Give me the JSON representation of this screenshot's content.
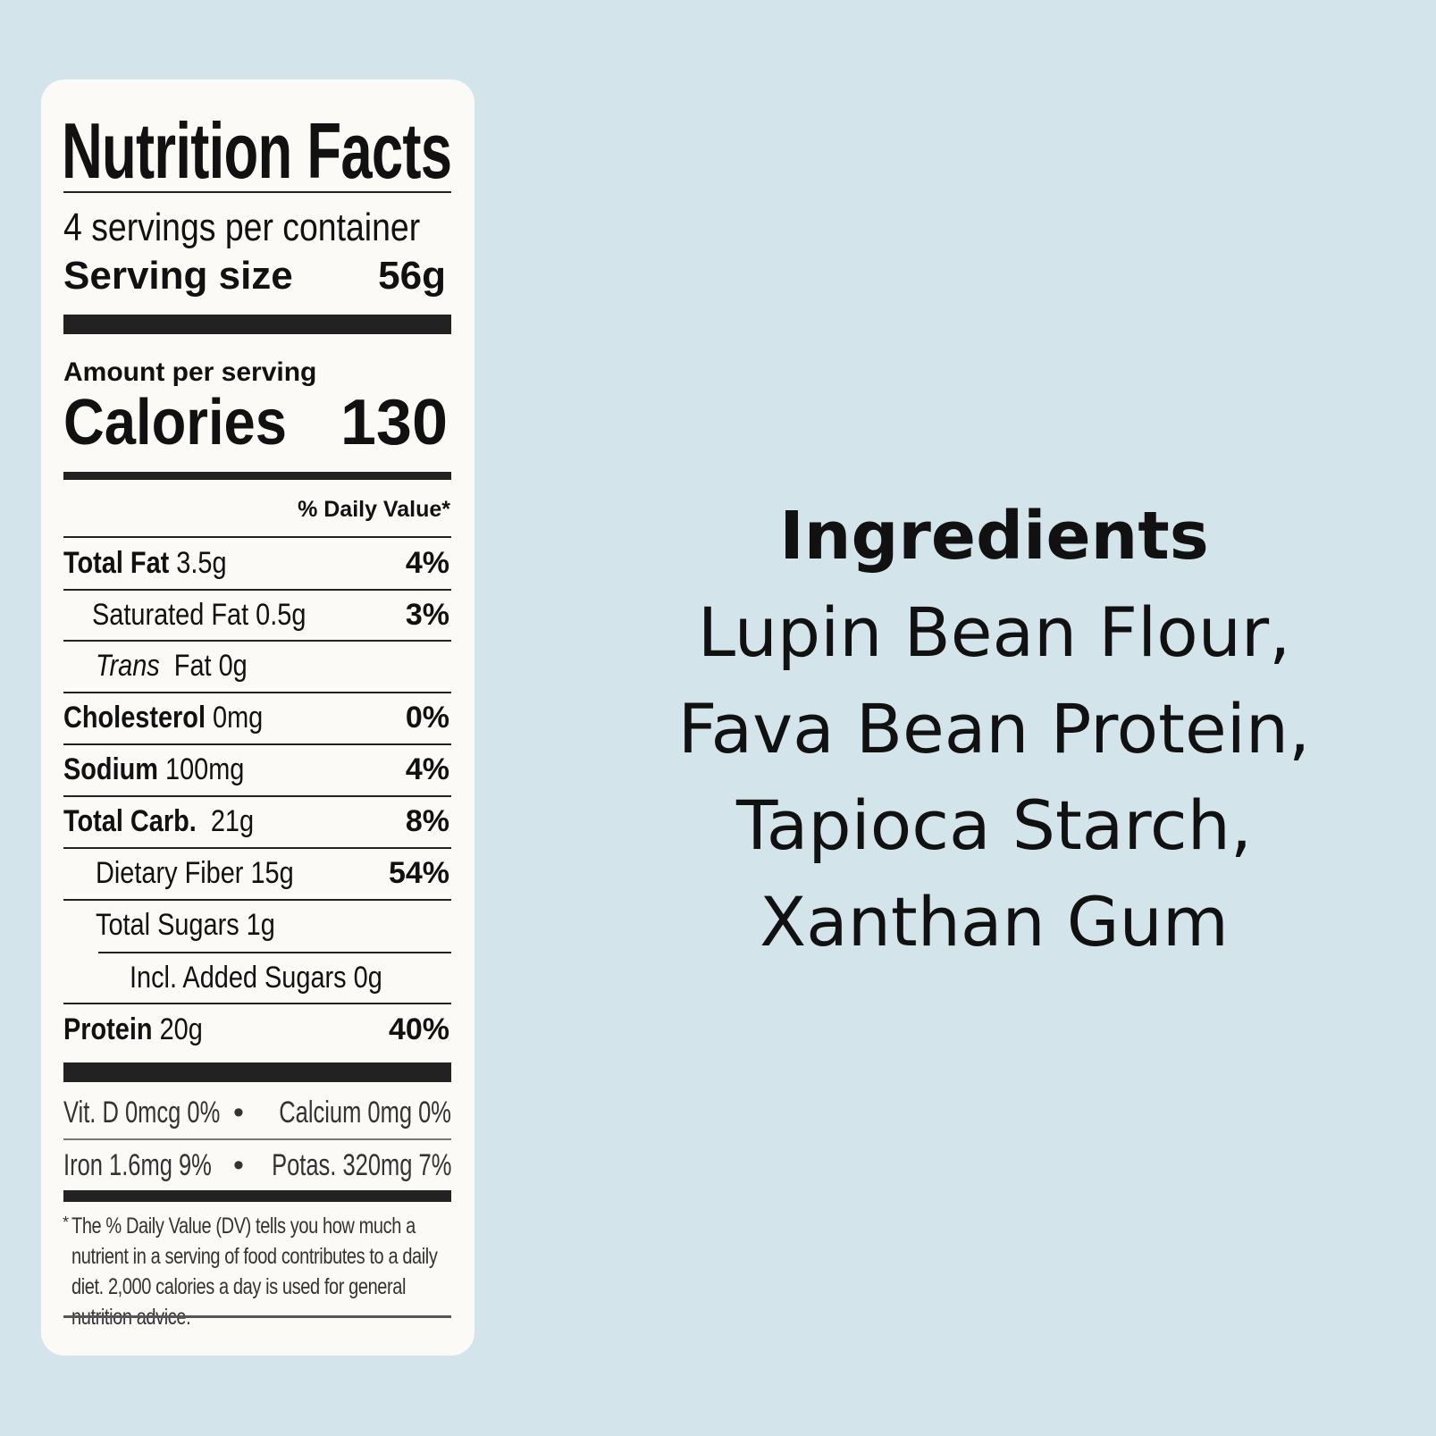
{
  "nutrition": {
    "title": "Nutrition Facts",
    "servings_per_container": "4 servings per container",
    "serving_size_label": "Serving size",
    "serving_size_value": "56g",
    "amount_per_serving": "Amount per serving",
    "calories_label": "Calories",
    "calories_value": "130",
    "daily_value_header": "% Daily Value*",
    "rows": [
      {
        "name": "Total Fat",
        "amount": "3.5g",
        "dv": "4%"
      },
      {
        "name": "Saturated Fat",
        "amount": "0.5g",
        "dv": "3%"
      },
      {
        "name": "Trans",
        "amount": "Fat 0g",
        "dv": ""
      },
      {
        "name": "Cholesterol",
        "amount": "0mg",
        "dv": "0%"
      },
      {
        "name": "Sodium",
        "amount": "100mg",
        "dv": "4%"
      },
      {
        "name": "Total Carb.",
        "amount": "21g",
        "dv": "8%"
      },
      {
        "name": "Dietary Fiber",
        "amount": "15g",
        "dv": "54%"
      },
      {
        "name": "Total Sugars",
        "amount": "1g",
        "dv": ""
      },
      {
        "name": "Incl. Added Sugars",
        "amount": "0g",
        "dv": ""
      },
      {
        "name": "Protein",
        "amount": "20g",
        "dv": "40%"
      }
    ],
    "vitamins": [
      {
        "left": "Vit. D 0mcg 0%",
        "right": "Calcium 0mg 0%"
      },
      {
        "left": "Iron 1.6mg 9%",
        "right": "Potas. 320mg 7%"
      }
    ],
    "bullet": "•",
    "footnote_mark": "*",
    "footnote": "The % Daily Value (DV) tells you how much a nutrient in a serving of food contributes to a daily diet. 2,000 calories a day is used for general nutrition advice."
  },
  "ingredients": {
    "title": "Ingredients",
    "lines": [
      "Lupin Bean Flour,",
      "Fava Bean Protein,",
      "Tapioca Starch,",
      "Xanthan Gum"
    ]
  },
  "colors": {
    "background": "#d3e5ea",
    "card": "#fcfaf7",
    "text": "#111111"
  }
}
